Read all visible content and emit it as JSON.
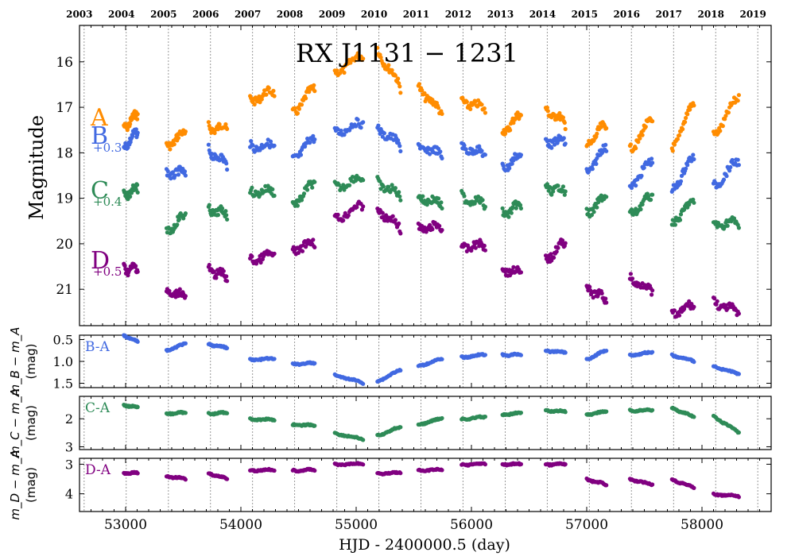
{
  "chart_data": {
    "type": "scatter",
    "title": "RX J1131 − 1231",
    "xlabel": "HJD - 2400000.5 (day)",
    "x_ticks": [
      "53000",
      "54000",
      "55000",
      "56000",
      "57000",
      "58000"
    ],
    "x_range": [
      52600,
      58600
    ],
    "top_axis_years": [
      "2003",
      "2004",
      "2005",
      "2006",
      "2007",
      "2008",
      "2009",
      "2010",
      "2011",
      "2012",
      "2013",
      "2014",
      "2015",
      "2016",
      "2017",
      "2018",
      "2019"
    ],
    "seasons": [
      {
        "start": 52985,
        "end": 53105
      },
      {
        "start": 53355,
        "end": 53520
      },
      {
        "start": 53720,
        "end": 53880
      },
      {
        "start": 54080,
        "end": 54290
      },
      {
        "start": 54450,
        "end": 54640
      },
      {
        "start": 54815,
        "end": 55060
      },
      {
        "start": 55185,
        "end": 55385
      },
      {
        "start": 55540,
        "end": 55745
      },
      {
        "start": 55915,
        "end": 56120
      },
      {
        "start": 56270,
        "end": 56430
      },
      {
        "start": 56645,
        "end": 56815
      },
      {
        "start": 57000,
        "end": 57170
      },
      {
        "start": 57375,
        "end": 57570
      },
      {
        "start": 57740,
        "end": 57930
      },
      {
        "start": 58100,
        "end": 58320
      }
    ],
    "panels": [
      {
        "ylabel": "Magnitude",
        "yticks": [
          "16",
          "17",
          "18",
          "19",
          "20",
          "21"
        ],
        "ylim": [
          15.2,
          21.8
        ],
        "inverted": true,
        "series": [
          {
            "name": "A",
            "offset": "",
            "color": "#ff8c00",
            "values": [
              17.4,
              17.2,
              17.8,
              17.6,
              17.4,
              17.5,
              16.8,
              16.7,
              17.1,
              16.6,
              16.2,
              15.9,
              15.7,
              16.6,
              16.5,
              17.2,
              16.8,
              17.1,
              17.5,
              17.2,
              17.0,
              17.4,
              17.8,
              17.4,
              17.9,
              17.3,
              17.9,
              16.9,
              17.6,
              16.8
            ]
          },
          {
            "name": "B",
            "offset": "+0.3",
            "color": "#4169e1",
            "values": [
              17.8,
              17.6,
              18.4,
              18.5,
              17.9,
              18.3,
              17.8,
              17.9,
              18.1,
              17.7,
              17.5,
              17.4,
              17.4,
              17.9,
              17.8,
              18.1,
              17.8,
              18.1,
              18.3,
              18.1,
              17.7,
              17.8,
              18.4,
              17.9,
              18.7,
              18.2,
              18.8,
              18.1,
              18.7,
              18.2
            ]
          },
          {
            "name": "C",
            "offset": "+0.4",
            "color": "#2e8b57",
            "values": [
              18.9,
              18.8,
              19.7,
              19.4,
              19.2,
              19.4,
              18.8,
              18.9,
              19.1,
              18.7,
              18.7,
              18.6,
              18.6,
              19.0,
              18.9,
              19.2,
              18.9,
              19.2,
              19.3,
              19.2,
              18.7,
              18.9,
              19.3,
              19.0,
              19.3,
              19.0,
              19.5,
              19.1,
              19.5,
              19.6
            ]
          },
          {
            "name": "D",
            "offset": "+0.5",
            "color": "#800080",
            "values": [
              20.5,
              20.6,
              21.0,
              21.2,
              20.5,
              20.8,
              20.3,
              20.3,
              20.1,
              20.0,
              19.4,
              19.2,
              19.2,
              19.7,
              19.6,
              19.7,
              20.0,
              20.1,
              20.5,
              20.7,
              20.3,
              20.0,
              20.9,
              21.3,
              20.7,
              21.1,
              21.5,
              21.4,
              21.2,
              21.6
            ]
          }
        ]
      },
      {
        "ylabel_top": "m_B − m_A",
        "ylabel_bottom": "(mag)",
        "yticks": [
          "0.5",
          "1.0",
          "1.5"
        ],
        "ylim": [
          0.4,
          1.6
        ],
        "inverted": true,
        "series": [
          {
            "name": "B-A",
            "color": "#4169e1",
            "values": [
              0.4,
              0.55,
              0.75,
              0.6,
              0.6,
              0.7,
              0.95,
              0.95,
              1.05,
              1.05,
              1.3,
              1.5,
              1.45,
              1.2,
              1.1,
              0.95,
              0.9,
              0.85,
              0.85,
              0.85,
              0.75,
              0.8,
              0.95,
              0.75,
              0.85,
              0.8,
              0.85,
              1.0,
              1.1,
              1.3
            ]
          }
        ]
      },
      {
        "ylabel_top": "m_C − m_A",
        "ylabel_bottom": "(mag)",
        "yticks": [
          "2",
          "3"
        ],
        "ylim": [
          1.2,
          3.1
        ],
        "inverted": true,
        "series": [
          {
            "name": "C-A",
            "color": "#2e8b57",
            "values": [
              1.5,
              1.6,
              1.8,
              1.8,
              1.8,
              1.8,
              2.0,
              2.05,
              2.2,
              2.25,
              2.5,
              2.75,
              2.6,
              2.3,
              2.2,
              2.0,
              2.0,
              1.95,
              1.85,
              1.8,
              1.7,
              1.75,
              1.85,
              1.75,
              1.7,
              1.7,
              1.6,
              1.95,
              1.9,
              2.5
            ]
          }
        ]
      },
      {
        "ylabel_top": "m_D − m_A",
        "ylabel_bottom": "(mag)",
        "yticks": [
          "3",
          "4"
        ],
        "ylim": [
          2.8,
          4.6
        ],
        "inverted": true,
        "series": [
          {
            "name": "D-A",
            "color": "#800080",
            "values": [
              3.3,
              3.3,
              3.4,
              3.5,
              3.3,
              3.5,
              3.2,
              3.2,
              3.2,
              3.2,
              3.0,
              3.0,
              3.3,
              3.3,
              3.2,
              3.2,
              3.0,
              3.0,
              3.0,
              3.0,
              3.0,
              3.0,
              3.5,
              3.7,
              3.5,
              3.7,
              3.5,
              3.8,
              4.0,
              4.1
            ]
          }
        ]
      }
    ]
  }
}
